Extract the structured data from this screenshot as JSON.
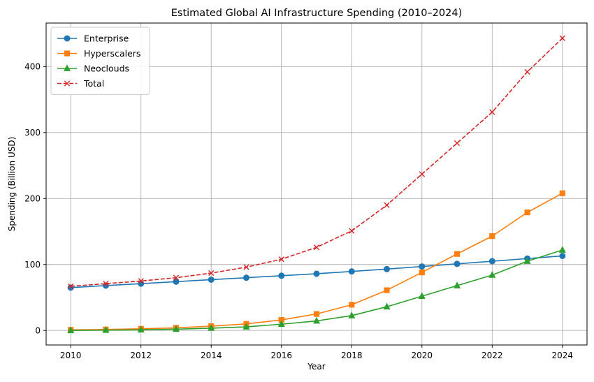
{
  "chart_data": {
    "type": "line",
    "title": "Estimated Global AI Infrastructure Spending (2010–2024)",
    "xlabel": "Year",
    "ylabel": "Spending (Billion USD)",
    "x": [
      2010,
      2011,
      2012,
      2013,
      2014,
      2015,
      2016,
      2017,
      2018,
      2019,
      2020,
      2021,
      2022,
      2023,
      2024
    ],
    "xlim": [
      2009.3,
      2024.7
    ],
    "ylim": [
      -22,
      466
    ],
    "xticks": [
      2010,
      2012,
      2014,
      2016,
      2018,
      2020,
      2022,
      2024
    ],
    "yticks": [
      0,
      100,
      200,
      300,
      400
    ],
    "grid": true,
    "legend_position": "top-left",
    "series": [
      {
        "name": "Enterprise",
        "color": "#1f77b4",
        "marker": "circle",
        "dash": "solid",
        "values": [
          65,
          68,
          71,
          74,
          77,
          80,
          83,
          86,
          89.5,
          93,
          97,
          101,
          105,
          109,
          113
        ]
      },
      {
        "name": "Hyperscalers",
        "color": "#ff7f0e",
        "marker": "square",
        "dash": "solid",
        "values": [
          1,
          1.5,
          2.5,
          4,
          6.5,
          10,
          16,
          25,
          39,
          61,
          88,
          116,
          143,
          179,
          208
        ]
      },
      {
        "name": "Neoclouds",
        "color": "#2ca02c",
        "marker": "triangle",
        "dash": "solid",
        "values": [
          0,
          0.5,
          1,
          2,
          3.5,
          5.5,
          9.5,
          14.5,
          22.5,
          36,
          52,
          68,
          84,
          105,
          122
        ]
      },
      {
        "name": "Total",
        "color": "#d62728",
        "marker": "x",
        "dash": "dashed",
        "values": [
          67,
          71,
          75,
          80,
          87,
          96,
          108,
          126,
          151,
          190,
          237,
          284,
          331,
          392,
          443
        ]
      }
    ]
  }
}
